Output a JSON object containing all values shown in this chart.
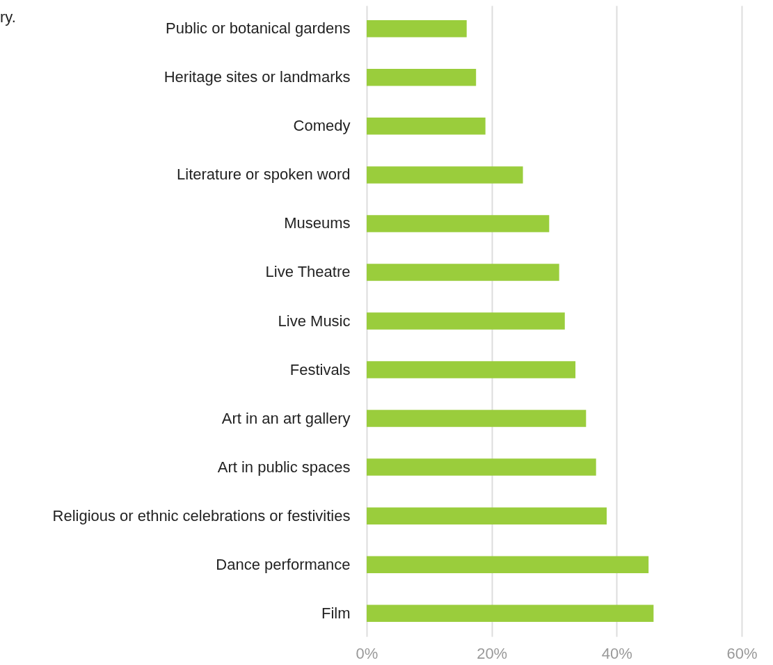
{
  "chart_data": {
    "type": "bar",
    "orientation": "horizontal",
    "annotations": [
      "ry."
    ],
    "categories": [
      "Public or botanical gardens",
      "Heritage sites or landmarks",
      "Comedy",
      "Literature or spoken word",
      "Museums",
      "Live Theatre",
      "Live Music",
      "Festivals",
      "Art in an art gallery",
      "Art in public spaces",
      "Religious or ethnic celebrations or festivities",
      "Dance performance",
      "Film"
    ],
    "values": [
      16,
      17.5,
      19,
      25,
      29.2,
      30.8,
      31.7,
      33.4,
      35.1,
      36.7,
      38.4,
      45.1,
      45.9
    ],
    "color": "#9acd3c",
    "xlim": [
      0,
      60
    ],
    "xticks": [
      {
        "value": 0,
        "label": "0%"
      },
      {
        "value": 20,
        "label": "20%"
      },
      {
        "value": 40,
        "label": "40%"
      },
      {
        "value": 60,
        "label": "60%"
      }
    ],
    "grid": "x"
  }
}
